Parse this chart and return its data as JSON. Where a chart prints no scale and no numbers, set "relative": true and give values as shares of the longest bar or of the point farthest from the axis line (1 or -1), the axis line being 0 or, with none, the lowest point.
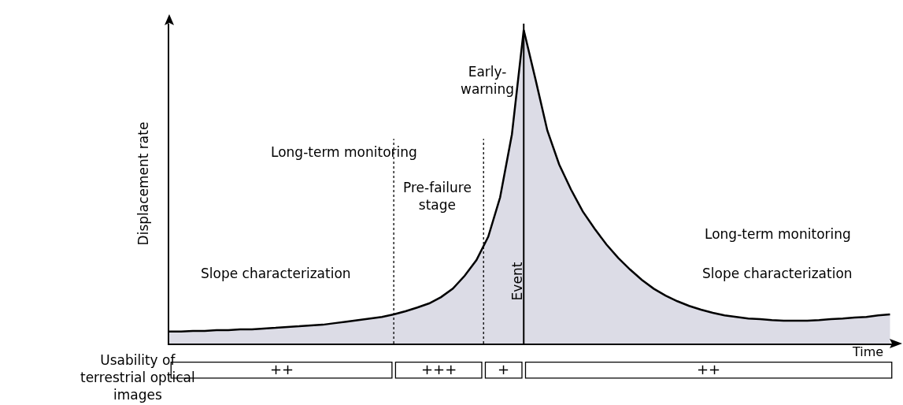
{
  "chart_data": {
    "type": "area",
    "relative": true,
    "xlabel": "Time",
    "ylabel": "Displacement rate",
    "categories": [
      null,
      null,
      null,
      null,
      null,
      null,
      null,
      null,
      null,
      null,
      null,
      null,
      null,
      null,
      null,
      null,
      null,
      null,
      null,
      null,
      null,
      null,
      null,
      null,
      null,
      null,
      null,
      null,
      null,
      null,
      null,
      null,
      null,
      null,
      null,
      null,
      null,
      null,
      null,
      null,
      null,
      null,
      null,
      null,
      null,
      null,
      null,
      null,
      null,
      null,
      null,
      null,
      null,
      null,
      null,
      null,
      null,
      null,
      null,
      null,
      null,
      null
    ],
    "series": [
      {
        "color": "#dcdce6",
        "values": [
          0.038,
          0.038,
          0.04,
          0.04,
          0.043,
          0.043,
          0.045,
          0.045,
          0.048,
          0.05,
          0.053,
          0.055,
          0.058,
          0.06,
          0.065,
          0.07,
          0.075,
          0.08,
          0.085,
          0.093,
          0.103,
          0.115,
          0.128,
          0.148,
          0.175,
          0.216,
          0.266,
          0.341,
          0.466,
          0.667,
          1.0,
          0.842,
          0.679,
          0.571,
          0.491,
          0.421,
          0.366,
          0.316,
          0.273,
          0.236,
          0.203,
          0.175,
          0.153,
          0.135,
          0.12,
          0.108,
          0.098,
          0.09,
          0.085,
          0.08,
          0.078,
          0.075,
          0.073,
          0.073,
          0.073,
          0.075,
          0.078,
          0.08,
          0.083,
          0.085,
          0.09,
          0.093
        ]
      }
    ],
    "annotations": [
      "Event",
      "Long-term monitoring",
      "Slope characterization",
      "Pre-failure\nstage",
      "Early-\nwarning",
      "Long-term monitoring",
      "Slope characterization",
      "Usability of\nterrestrial optical\nimages",
      "++",
      "+++",
      "+",
      "++"
    ],
    "grid": false
  }
}
